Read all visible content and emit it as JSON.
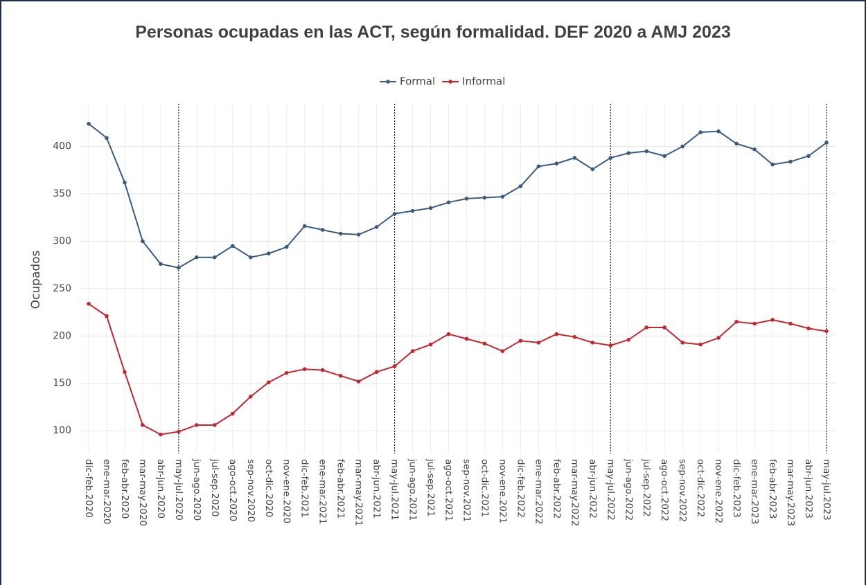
{
  "chart_data": {
    "type": "line",
    "title": "Personas ocupadas en las ACT, según formalidad. DEF 2020 a AMJ 2023",
    "ylabel": "Ocupados",
    "categories": [
      "dic-feb.2020",
      "ene-mar.2020",
      "feb-abr.2020",
      "mar-may.2020",
      "abr-jun.2020",
      "may-jul.2020",
      "jun-ago.2020",
      "jul-sep.2020",
      "ago-oct.2020",
      "sep-nov.2020",
      "oct-dic.2020",
      "nov-ene.2020",
      "dic-feb.2021",
      "ene-mar.2021",
      "feb-abr.2021",
      "mar-may.2021",
      "abr-jun.2021",
      "may-jul.2021",
      "jun-ago.2021",
      "jul-sep.2021",
      "ago-oct.2021",
      "sep-nov.2021",
      "oct-dic.2021",
      "nov-ene.2021",
      "dic-feb.2022",
      "ene-mar.2022",
      "feb-abr.2022",
      "mar-may.2022",
      "abr-jun.2022",
      "may-jul.2022",
      "jun-ago.2022",
      "jul-sep.2022",
      "ago-oct.2022",
      "sep-nov.2022",
      "oct-dic.2022",
      "nov-ene.2022",
      "dic-feb.2023",
      "ene-mar.2023",
      "feb-abr.2023",
      "mar-may.2023",
      "abr-jun.2023",
      "may-jul.2023"
    ],
    "series": [
      {
        "name": "Formal",
        "color": "#3b5a80",
        "values": [
          424,
          409,
          362,
          300,
          276,
          272,
          283,
          283,
          295,
          283,
          287,
          294,
          316,
          312,
          308,
          307,
          315,
          329,
          332,
          335,
          341,
          345,
          346,
          347,
          358,
          379,
          382,
          388,
          376,
          388,
          393,
          395,
          390,
          400,
          415,
          416,
          403,
          397,
          381,
          384,
          390,
          404
        ]
      },
      {
        "name": "Informal",
        "color": "#c3262e",
        "values": [
          234,
          221,
          162,
          106,
          96,
          99,
          106,
          106,
          118,
          136,
          151,
          161,
          165,
          164,
          158,
          152,
          162,
          168,
          184,
          191,
          202,
          197,
          192,
          184,
          195,
          193,
          202,
          199,
          193,
          190,
          196,
          209,
          209,
          193,
          191,
          198,
          215,
          213,
          217,
          213,
          208,
          205
        ]
      }
    ],
    "vlines": [
      "may-jul.2020",
      "may-jul.2021",
      "may-jul.2022",
      "may-jul.2023"
    ],
    "ylim": [
      76,
      445
    ],
    "yticks": [
      100,
      150,
      200,
      250,
      300,
      350,
      400
    ],
    "grid": true,
    "legend": "top"
  }
}
